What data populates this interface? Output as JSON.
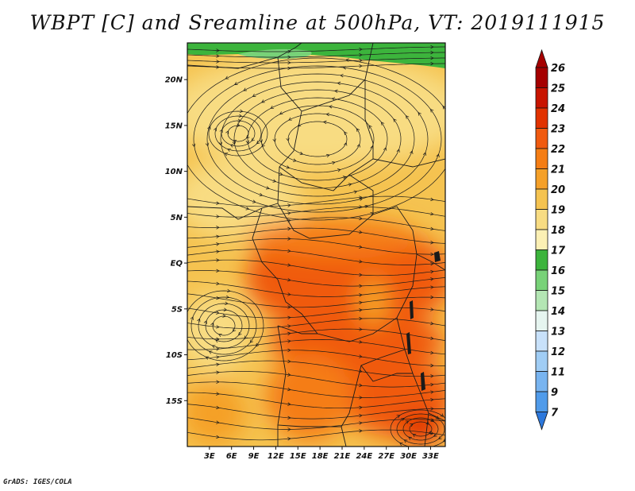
{
  "title": "WBPT [C] and Sreamline at 500hPa, VT: 2019111915",
  "footer": "GrADS: IGES/COLA",
  "map": {
    "lon_range": [
      0,
      35
    ],
    "lat_range": [
      -20,
      24
    ],
    "lat_ticks": [
      {
        "value": 20,
        "label": "20N"
      },
      {
        "value": 15,
        "label": "15N"
      },
      {
        "value": 10,
        "label": "10N"
      },
      {
        "value": 5,
        "label": "5N"
      },
      {
        "value": 0,
        "label": "EQ"
      },
      {
        "value": -5,
        "label": "5S"
      },
      {
        "value": -10,
        "label": "10S"
      },
      {
        "value": -15,
        "label": "15S"
      }
    ],
    "lon_ticks": [
      {
        "value": 3,
        "label": "3E"
      },
      {
        "value": 6,
        "label": "6E"
      },
      {
        "value": 9,
        "label": "9E"
      },
      {
        "value": 12,
        "label": "12E"
      },
      {
        "value": 15,
        "label": "15E"
      },
      {
        "value": 18,
        "label": "18E"
      },
      {
        "value": 21,
        "label": "21E"
      },
      {
        "value": 24,
        "label": "24E"
      },
      {
        "value": 27,
        "label": "27E"
      },
      {
        "value": 30,
        "label": "30E"
      },
      {
        "value": 33,
        "label": "33E"
      }
    ]
  },
  "colorbar": {
    "labels": [
      "26",
      "25",
      "24",
      "23",
      "22",
      "21",
      "20",
      "19",
      "18",
      "17",
      "16",
      "15",
      "14",
      "13",
      "12",
      "11",
      "9",
      "7"
    ],
    "colors": [
      "#a50000",
      "#c81400",
      "#e13200",
      "#f05a0f",
      "#f57d14",
      "#f5a028",
      "#f5c350",
      "#f8dc82",
      "#fcf0b4",
      "#3cb43c",
      "#78d278",
      "#b4e6b4",
      "#e6f5f0",
      "#c8e1fa",
      "#a0cdf5",
      "#78b4f0",
      "#509bea",
      "#2d78dc"
    ],
    "top_color": "#a50000",
    "bottom_color": "#2d78dc"
  }
}
